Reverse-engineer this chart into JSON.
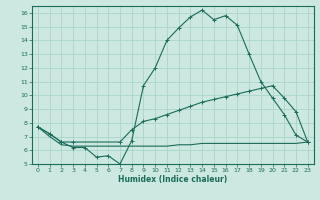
{
  "xlabel": "Humidex (Indice chaleur)",
  "bg_color": "#cce8e0",
  "line_color": "#1a6b5a",
  "grid_color": "#aad4c8",
  "xlim": [
    -0.5,
    23.5
  ],
  "ylim": [
    5,
    16.5
  ],
  "xticks": [
    0,
    1,
    2,
    3,
    4,
    5,
    6,
    7,
    8,
    9,
    10,
    11,
    12,
    13,
    14,
    15,
    16,
    17,
    18,
    19,
    20,
    21,
    22,
    23
  ],
  "yticks": [
    5,
    6,
    7,
    8,
    9,
    10,
    11,
    12,
    13,
    14,
    15,
    16
  ],
  "curve1_x": [
    0,
    1,
    2,
    3,
    4,
    5,
    6,
    7,
    8,
    9,
    10,
    11,
    12,
    13,
    14,
    15,
    16,
    17,
    18,
    19,
    20,
    21,
    22,
    23
  ],
  "curve1_y": [
    7.7,
    7.2,
    6.6,
    6.2,
    6.2,
    5.5,
    5.6,
    5.0,
    6.7,
    10.7,
    12.0,
    14.0,
    14.9,
    15.7,
    16.2,
    15.5,
    15.8,
    15.1,
    13.0,
    11.0,
    9.8,
    8.6,
    7.1,
    6.6
  ],
  "curve2_x": [
    0,
    1,
    2,
    3,
    7,
    8,
    9,
    10,
    11,
    12,
    13,
    14,
    15,
    16,
    17,
    18,
    19,
    20,
    21,
    22,
    23
  ],
  "curve2_y": [
    7.7,
    7.2,
    6.6,
    6.6,
    6.6,
    7.5,
    8.1,
    8.3,
    8.6,
    8.9,
    9.2,
    9.5,
    9.7,
    9.9,
    10.1,
    10.3,
    10.5,
    10.7,
    9.8,
    8.8,
    6.6
  ],
  "curve3_x": [
    0,
    1,
    2,
    3,
    4,
    5,
    6,
    7,
    8,
    9,
    10,
    11,
    12,
    13,
    14,
    15,
    16,
    17,
    18,
    19,
    20,
    21,
    22,
    23
  ],
  "curve3_y": [
    7.7,
    7.0,
    6.4,
    6.3,
    6.3,
    6.3,
    6.3,
    6.3,
    6.3,
    6.3,
    6.3,
    6.3,
    6.4,
    6.4,
    6.5,
    6.5,
    6.5,
    6.5,
    6.5,
    6.5,
    6.5,
    6.5,
    6.5,
    6.6
  ]
}
